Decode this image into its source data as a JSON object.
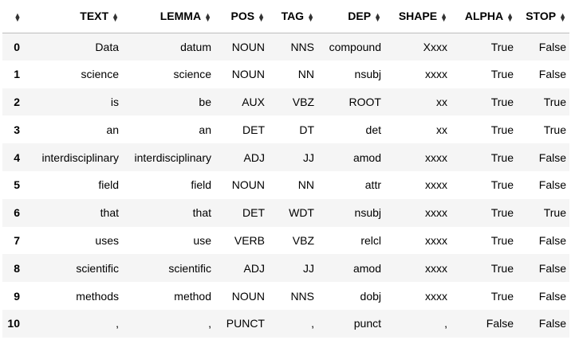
{
  "table": {
    "columns": [
      "TEXT",
      "LEMMA",
      "POS",
      "TAG",
      "DEP",
      "SHAPE",
      "ALPHA",
      "STOP"
    ],
    "rows": [
      {
        "index": "0",
        "cells": [
          "Data",
          "datum",
          "NOUN",
          "NNS",
          "compound",
          "Xxxx",
          "True",
          "False"
        ]
      },
      {
        "index": "1",
        "cells": [
          "science",
          "science",
          "NOUN",
          "NN",
          "nsubj",
          "xxxx",
          "True",
          "False"
        ]
      },
      {
        "index": "2",
        "cells": [
          "is",
          "be",
          "AUX",
          "VBZ",
          "ROOT",
          "xx",
          "True",
          "True"
        ]
      },
      {
        "index": "3",
        "cells": [
          "an",
          "an",
          "DET",
          "DT",
          "det",
          "xx",
          "True",
          "True"
        ]
      },
      {
        "index": "4",
        "cells": [
          "interdisciplinary",
          "interdisciplinary",
          "ADJ",
          "JJ",
          "amod",
          "xxxx",
          "True",
          "False"
        ]
      },
      {
        "index": "5",
        "cells": [
          "field",
          "field",
          "NOUN",
          "NN",
          "attr",
          "xxxx",
          "True",
          "False"
        ]
      },
      {
        "index": "6",
        "cells": [
          "that",
          "that",
          "DET",
          "WDT",
          "nsubj",
          "xxxx",
          "True",
          "True"
        ]
      },
      {
        "index": "7",
        "cells": [
          "uses",
          "use",
          "VERB",
          "VBZ",
          "relcl",
          "xxxx",
          "True",
          "False"
        ]
      },
      {
        "index": "8",
        "cells": [
          "scientific",
          "scientific",
          "ADJ",
          "JJ",
          "amod",
          "xxxx",
          "True",
          "False"
        ]
      },
      {
        "index": "9",
        "cells": [
          "methods",
          "method",
          "NOUN",
          "NNS",
          "dobj",
          "xxxx",
          "True",
          "False"
        ]
      },
      {
        "index": "10",
        "cells": [
          ",",
          ",",
          "PUNCT",
          ",",
          "punct",
          ",",
          "False",
          "False"
        ]
      }
    ],
    "sort_icon": "sort-arrows-icon",
    "colors": {
      "odd_row": "#f5f5f5",
      "even_row": "#ffffff",
      "header_border": "#bdbdbd"
    }
  }
}
